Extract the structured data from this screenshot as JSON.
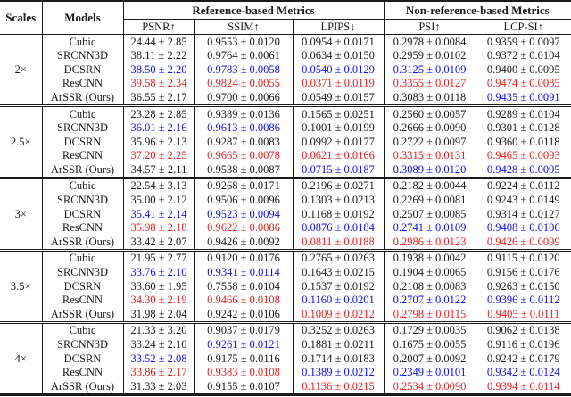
{
  "colors": {
    "ink": "#1a1a1a",
    "best_red": "#e82020",
    "second_blue": "#0f10e8"
  },
  "table": {
    "header": {
      "scales": "Scales",
      "models": "Models",
      "groups": [
        {
          "label": "Reference-based Metrics",
          "span": 3
        },
        {
          "label": "Non-reference-based Metrics",
          "span": 2
        }
      ],
      "metrics": [
        "PSNR↑",
        "SSIM↑",
        "LPIPS↓",
        "PSI↑",
        "LCP-SI↑"
      ]
    },
    "sections": [
      {
        "scale": "2×",
        "rows": [
          {
            "model": "Cubic",
            "cells": [
              {
                "v": "24.44 ± 2.85",
                "c": "k"
              },
              {
                "v": "0.9553 ± 0.0120",
                "c": "k"
              },
              {
                "v": "0.0954 ± 0.0171",
                "c": "k"
              },
              {
                "v": "0.2978 ± 0.0084",
                "c": "k"
              },
              {
                "v": "0.9359 ± 0.0097",
                "c": "k"
              }
            ]
          },
          {
            "model": "SRCNN3D",
            "cells": [
              {
                "v": "38.11 ± 2.22",
                "c": "k"
              },
              {
                "v": "0.9764 ± 0.0061",
                "c": "k"
              },
              {
                "v": "0.0634 ± 0.0150",
                "c": "k"
              },
              {
                "v": "0.2959 ± 0.0102",
                "c": "k"
              },
              {
                "v": "0.9372 ± 0.0104",
                "c": "k"
              }
            ]
          },
          {
            "model": "DCSRN",
            "cells": [
              {
                "v": "38.50 ± 2.20",
                "c": "b"
              },
              {
                "v": "0.9783 ± 0.0058",
                "c": "b"
              },
              {
                "v": "0.0540 ± 0.0129",
                "c": "b"
              },
              {
                "v": "0.3125 ± 0.0109",
                "c": "b"
              },
              {
                "v": "0.9400 ± 0.0095",
                "c": "k"
              }
            ]
          },
          {
            "model": "ResCNN",
            "cells": [
              {
                "v": "39.58 ± 2.34",
                "c": "r"
              },
              {
                "v": "0.9824 ± 0.0055",
                "c": "r"
              },
              {
                "v": "0.0371 ± 0.0119",
                "c": "r"
              },
              {
                "v": "0.3355 ± 0.0127",
                "c": "r"
              },
              {
                "v": "0.9474 ± 0.0085",
                "c": "r"
              }
            ]
          },
          {
            "model": "ArSSR (Ours)",
            "cells": [
              {
                "v": "36.55 ± 2.17",
                "c": "k"
              },
              {
                "v": "0.9700 ± 0.0066",
                "c": "k"
              },
              {
                "v": "0.0549 ± 0.0157",
                "c": "k"
              },
              {
                "v": "0.3083 ± 0.0118",
                "c": "k"
              },
              {
                "v": "0.9435 ± 0.0091",
                "c": "b"
              }
            ]
          }
        ]
      },
      {
        "scale": "2.5×",
        "rows": [
          {
            "model": "Cubic",
            "cells": [
              {
                "v": "23.28 ± 2.85",
                "c": "k"
              },
              {
                "v": "0.9389 ± 0.0136",
                "c": "k"
              },
              {
                "v": "0.1565 ± 0.0251",
                "c": "k"
              },
              {
                "v": "0.2560 ± 0.0057",
                "c": "k"
              },
              {
                "v": "0.9289 ± 0.0104",
                "c": "k"
              }
            ]
          },
          {
            "model": "SRCNN3D",
            "cells": [
              {
                "v": "36.01 ± 2.16",
                "c": "b"
              },
              {
                "v": "0.9613 ± 0.0086",
                "c": "b"
              },
              {
                "v": "0.1001 ± 0.0199",
                "c": "k"
              },
              {
                "v": "0.2666 ± 0.0090",
                "c": "k"
              },
              {
                "v": "0.9301 ± 0.0128",
                "c": "k"
              }
            ]
          },
          {
            "model": "DCSRN",
            "cells": [
              {
                "v": "35.96 ± 2.13",
                "c": "k"
              },
              {
                "v": "0.9287 ± 0.0083",
                "c": "k"
              },
              {
                "v": "0.0992 ± 0.0177",
                "c": "k"
              },
              {
                "v": "0.2722 ± 0.0097",
                "c": "k"
              },
              {
                "v": "0.9360 ± 0.0118",
                "c": "k"
              }
            ]
          },
          {
            "model": "ResCNN",
            "cells": [
              {
                "v": "37.20 ± 2.25",
                "c": "r"
              },
              {
                "v": "0.9665 ± 0.0078",
                "c": "r"
              },
              {
                "v": "0.0621 ± 0.0166",
                "c": "r"
              },
              {
                "v": "0.3315 ± 0.0131",
                "c": "r"
              },
              {
                "v": "0.9465 ± 0.0093",
                "c": "r"
              }
            ]
          },
          {
            "model": "ArSSR (Ours)",
            "cells": [
              {
                "v": "34.57 ± 2.11",
                "c": "k"
              },
              {
                "v": "0.9538 ± 0.0087",
                "c": "k"
              },
              {
                "v": "0.0715 ± 0.0187",
                "c": "b"
              },
              {
                "v": "0.3089 ± 0.0120",
                "c": "b"
              },
              {
                "v": "0.9428 ± 0.0095",
                "c": "b"
              }
            ]
          }
        ]
      },
      {
        "scale": "3×",
        "rows": [
          {
            "model": "Cubic",
            "cells": [
              {
                "v": "22.54 ± 3.13",
                "c": "k"
              },
              {
                "v": "0.9268 ± 0.0171",
                "c": "k"
              },
              {
                "v": "0.2196 ± 0.0271",
                "c": "k"
              },
              {
                "v": "0.2182 ± 0.0044",
                "c": "k"
              },
              {
                "v": "0.9224 ± 0.0112",
                "c": "k"
              }
            ]
          },
          {
            "model": "SRCNN3D",
            "cells": [
              {
                "v": "35.00 ± 2.12",
                "c": "k"
              },
              {
                "v": "0.9506 ± 0.0096",
                "c": "k"
              },
              {
                "v": "0.1303 ± 0.0213",
                "c": "k"
              },
              {
                "v": "0.2269 ± 0.0081",
                "c": "k"
              },
              {
                "v": "0.9243 ± 0.0149",
                "c": "k"
              }
            ]
          },
          {
            "model": "DCSRN",
            "cells": [
              {
                "v": "35.41 ± 2.14",
                "c": "b"
              },
              {
                "v": "0.9523 ± 0.0094",
                "c": "b"
              },
              {
                "v": "0.1168 ± 0.0192",
                "c": "k"
              },
              {
                "v": "0.2507 ± 0.0085",
                "c": "k"
              },
              {
                "v": "0.9314 ± 0.0127",
                "c": "k"
              }
            ]
          },
          {
            "model": "ResCNN",
            "cells": [
              {
                "v": "35.98 ± 2.18",
                "c": "r"
              },
              {
                "v": "0.9622 ± 0.0086",
                "c": "r"
              },
              {
                "v": "0.0876 ± 0.0184",
                "c": "b"
              },
              {
                "v": "0.2741 ± 0.0109",
                "c": "b"
              },
              {
                "v": "0.9408 ± 0.0106",
                "c": "b"
              }
            ]
          },
          {
            "model": "ArSSR (Ours)",
            "cells": [
              {
                "v": "33.42 ± 2.07",
                "c": "k"
              },
              {
                "v": "0.9426 ± 0.0092",
                "c": "k"
              },
              {
                "v": "0.0811 ± 0.0188",
                "c": "r"
              },
              {
                "v": "0.2986 ± 0.0123",
                "c": "r"
              },
              {
                "v": "0.9426 ± 0.0099",
                "c": "r"
              }
            ]
          }
        ]
      },
      {
        "scale": "3.5×",
        "rows": [
          {
            "model": "Cubic",
            "cells": [
              {
                "v": "21.95 ± 2.77",
                "c": "k"
              },
              {
                "v": "0.9120 ± 0.0176",
                "c": "k"
              },
              {
                "v": "0.2765 ± 0.0263",
                "c": "k"
              },
              {
                "v": "0.1938 ± 0.0042",
                "c": "k"
              },
              {
                "v": "0.9115 ± 0.0120",
                "c": "k"
              }
            ]
          },
          {
            "model": "SRCNN3D",
            "cells": [
              {
                "v": "33.76 ± 2.10",
                "c": "b"
              },
              {
                "v": "0.9341 ± 0.0114",
                "c": "b"
              },
              {
                "v": "0.1643 ± 0.0215",
                "c": "k"
              },
              {
                "v": "0.1904 ± 0.0065",
                "c": "k"
              },
              {
                "v": "0.9156 ± 0.0176",
                "c": "k"
              }
            ]
          },
          {
            "model": "DCSRN",
            "cells": [
              {
                "v": "33.60 ± 1.95",
                "c": "k"
              },
              {
                "v": "0.7558 ± 0.0104",
                "c": "k"
              },
              {
                "v": "0.1537 ± 0.0192",
                "c": "k"
              },
              {
                "v": "0.2108 ± 0.0083",
                "c": "k"
              },
              {
                "v": "0.9263 ± 0.0150",
                "c": "k"
              }
            ]
          },
          {
            "model": "ResCNN",
            "cells": [
              {
                "v": "34.30 ± 2.19",
                "c": "r"
              },
              {
                "v": "0.9466 ± 0.0108",
                "c": "r"
              },
              {
                "v": "0.1160 ± 0.0201",
                "c": "b"
              },
              {
                "v": "0.2707 ± 0.0122",
                "c": "b"
              },
              {
                "v": "0.9396 ± 0.0112",
                "c": "b"
              }
            ]
          },
          {
            "model": "ArSSR (Ours)",
            "cells": [
              {
                "v": "31.98 ± 2.04",
                "c": "k"
              },
              {
                "v": "0.9242 ± 0.0106",
                "c": "k"
              },
              {
                "v": "0.1009 ± 0.0212",
                "c": "r"
              },
              {
                "v": "0.2798 ± 0.0115",
                "c": "r"
              },
              {
                "v": "0.9405 ± 0.0111",
                "c": "r"
              }
            ]
          }
        ]
      },
      {
        "scale": "4×",
        "rows": [
          {
            "model": "Cubic",
            "cells": [
              {
                "v": "21.33 ± 3.20",
                "c": "k"
              },
              {
                "v": "0.9037 ± 0.0179",
                "c": "k"
              },
              {
                "v": "0.3252 ± 0.0263",
                "c": "k"
              },
              {
                "v": "0.1729 ± 0.0035",
                "c": "k"
              },
              {
                "v": "0.9062 ± 0.0138",
                "c": "k"
              }
            ]
          },
          {
            "model": "SRCNN3D",
            "cells": [
              {
                "v": "33.24 ± 2.10",
                "c": "k"
              },
              {
                "v": "0.9261 ± 0.0121",
                "c": "b"
              },
              {
                "v": "0.1881 ± 0.0211",
                "c": "k"
              },
              {
                "v": "0.1675 ± 0.0055",
                "c": "k"
              },
              {
                "v": "0.9116 ± 0.0196",
                "c": "k"
              }
            ]
          },
          {
            "model": "DCSRN",
            "cells": [
              {
                "v": "33.52 ± 2.08",
                "c": "b"
              },
              {
                "v": "0.9175 ± 0.0116",
                "c": "k"
              },
              {
                "v": "0.1714 ± 0.0183",
                "c": "k"
              },
              {
                "v": "0.2007 ± 0.0092",
                "c": "k"
              },
              {
                "v": "0.9242 ± 0.0179",
                "c": "k"
              }
            ]
          },
          {
            "model": "ResCNN",
            "cells": [
              {
                "v": "33.86 ± 2.17",
                "c": "r"
              },
              {
                "v": "0.9383 ± 0.0108",
                "c": "r"
              },
              {
                "v": "0.1389 ± 0.0212",
                "c": "b"
              },
              {
                "v": "0.2349 ± 0.0101",
                "c": "b"
              },
              {
                "v": "0.9342 ± 0.0124",
                "c": "b"
              }
            ]
          },
          {
            "model": "ArSSR (Ours)",
            "cells": [
              {
                "v": "31.33 ± 2.03",
                "c": "k"
              },
              {
                "v": "0.9155 ± 0.0107",
                "c": "k"
              },
              {
                "v": "0.1136 ± 0.0215",
                "c": "r"
              },
              {
                "v": "0.2534 ± 0.0090",
                "c": "r"
              },
              {
                "v": "0.9394 ± 0.0114",
                "c": "r"
              }
            ]
          }
        ]
      }
    ]
  }
}
